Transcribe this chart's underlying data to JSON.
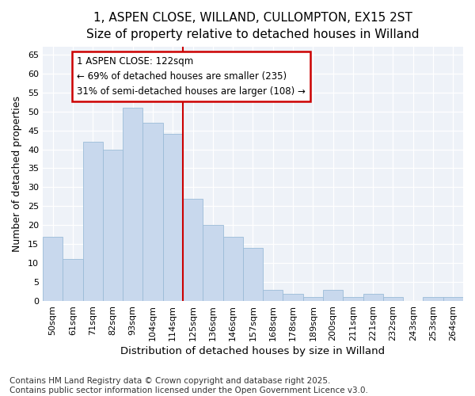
{
  "title_line1": "1, ASPEN CLOSE, WILLAND, CULLOMPTON, EX15 2ST",
  "title_line2": "Size of property relative to detached houses in Willand",
  "xlabel": "Distribution of detached houses by size in Willand",
  "ylabel": "Number of detached properties",
  "categories": [
    "50sqm",
    "61sqm",
    "71sqm",
    "82sqm",
    "93sqm",
    "104sqm",
    "114sqm",
    "125sqm",
    "136sqm",
    "146sqm",
    "157sqm",
    "168sqm",
    "178sqm",
    "189sqm",
    "200sqm",
    "211sqm",
    "221sqm",
    "232sqm",
    "243sqm",
    "253sqm",
    "264sqm"
  ],
  "values": [
    17,
    11,
    42,
    40,
    51,
    47,
    44,
    27,
    20,
    17,
    14,
    3,
    2,
    1,
    3,
    1,
    2,
    1,
    0,
    1,
    1
  ],
  "bar_color": "#c8d8ed",
  "bar_edgecolor": "#9bbcd8",
  "vline_color": "#cc0000",
  "vline_index": 7,
  "ylim": [
    0,
    67
  ],
  "yticks": [
    0,
    5,
    10,
    15,
    20,
    25,
    30,
    35,
    40,
    45,
    50,
    55,
    60,
    65
  ],
  "annotation_text": "1 ASPEN CLOSE: 122sqm\n← 69% of detached houses are smaller (235)\n31% of semi-detached houses are larger (108) →",
  "annotation_box_facecolor": "#ffffff",
  "annotation_box_edgecolor": "#cc0000",
  "footer_text": "Contains HM Land Registry data © Crown copyright and database right 2025.\nContains public sector information licensed under the Open Government Licence v3.0.",
  "fig_facecolor": "#ffffff",
  "plot_facecolor": "#eef2f8",
  "grid_color": "#ffffff",
  "title_fontsize": 11,
  "subtitle_fontsize": 10,
  "xlabel_fontsize": 9.5,
  "ylabel_fontsize": 9,
  "tick_fontsize": 8,
  "annotation_fontsize": 8.5,
  "footer_fontsize": 7.5
}
